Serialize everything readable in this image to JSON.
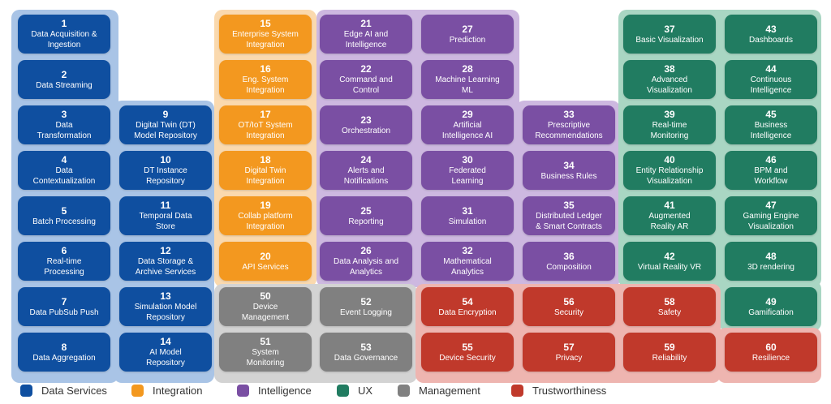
{
  "colors": {
    "data_services": "#0f4fa0",
    "integration": "#f3981f",
    "intelligence": "#7a4fa3",
    "ux": "#217c61",
    "management": "#808080",
    "trustworthiness": "#c0392b"
  },
  "tiles": [
    {
      "num": "1",
      "label": "Data Acquisition &\nIngestion",
      "cat": "data_services"
    },
    {
      "num": "2",
      "label": "Data Streaming",
      "cat": "data_services"
    },
    {
      "num": "3",
      "label": "Data\nTransformation",
      "cat": "data_services"
    },
    {
      "num": "4",
      "label": "Data\nContextualization",
      "cat": "data_services"
    },
    {
      "num": "5",
      "label": "Batch Processing",
      "cat": "data_services"
    },
    {
      "num": "6",
      "label": "Real-time\nProcessing",
      "cat": "data_services"
    },
    {
      "num": "7",
      "label": "Data PubSub Push",
      "cat": "data_services"
    },
    {
      "num": "8",
      "label": "Data Aggregation",
      "cat": "data_services"
    },
    {
      "num": "9",
      "label": "Digital Twin (DT)\nModel Repository",
      "cat": "data_services"
    },
    {
      "num": "10",
      "label": "DT Instance\nRepository",
      "cat": "data_services"
    },
    {
      "num": "11",
      "label": "Temporal Data\nStore",
      "cat": "data_services"
    },
    {
      "num": "12",
      "label": "Data Storage &\nArchive Services",
      "cat": "data_services"
    },
    {
      "num": "13",
      "label": "Simulation Model\nRepository",
      "cat": "data_services"
    },
    {
      "num": "14",
      "label": "AI Model\nRepository",
      "cat": "data_services"
    },
    {
      "num": "15",
      "label": "Enterprise System\nIntegration",
      "cat": "integration"
    },
    {
      "num": "16",
      "label": "Eng. System\nIntegration",
      "cat": "integration"
    },
    {
      "num": "17",
      "label": "OT/IoT System\nIntegration",
      "cat": "integration"
    },
    {
      "num": "18",
      "label": "Digital Twin\nIntegration",
      "cat": "integration"
    },
    {
      "num": "19",
      "label": "Collab platform\nIntegration",
      "cat": "integration"
    },
    {
      "num": "20",
      "label": "API Services",
      "cat": "integration"
    },
    {
      "num": "21",
      "label": "Edge AI and\nIntelligence",
      "cat": "intelligence"
    },
    {
      "num": "22",
      "label": "Command and\nControl",
      "cat": "intelligence"
    },
    {
      "num": "23",
      "label": "Orchestration",
      "cat": "intelligence"
    },
    {
      "num": "24",
      "label": "Alerts and\nNotifications",
      "cat": "intelligence"
    },
    {
      "num": "25",
      "label": "Reporting",
      "cat": "intelligence"
    },
    {
      "num": "26",
      "label": "Data Analysis and\nAnalytics",
      "cat": "intelligence"
    },
    {
      "num": "27",
      "label": "Prediction",
      "cat": "intelligence"
    },
    {
      "num": "28",
      "label": "Machine Learning\nML",
      "cat": "intelligence"
    },
    {
      "num": "29",
      "label": "Artificial\nIntelligence AI",
      "cat": "intelligence"
    },
    {
      "num": "30",
      "label": "Federated\nLearning",
      "cat": "intelligence"
    },
    {
      "num": "31",
      "label": "Simulation",
      "cat": "intelligence"
    },
    {
      "num": "32",
      "label": "Mathematical\nAnalytics",
      "cat": "intelligence"
    },
    {
      "num": "33",
      "label": "Prescriptive\nRecommendations",
      "cat": "intelligence"
    },
    {
      "num": "34",
      "label": "Business Rules",
      "cat": "intelligence"
    },
    {
      "num": "35",
      "label": "Distributed Ledger\n& Smart Contracts",
      "cat": "intelligence"
    },
    {
      "num": "36",
      "label": "Composition",
      "cat": "intelligence"
    },
    {
      "num": "37",
      "label": "Basic Visualization",
      "cat": "ux"
    },
    {
      "num": "38",
      "label": "Advanced\nVisualization",
      "cat": "ux"
    },
    {
      "num": "39",
      "label": "Real-time\nMonitoring",
      "cat": "ux"
    },
    {
      "num": "40",
      "label": "Entity Relationship\nVisualization",
      "cat": "ux"
    },
    {
      "num": "41",
      "label": "Augmented\nReality AR",
      "cat": "ux"
    },
    {
      "num": "42",
      "label": "Virtual Reality VR",
      "cat": "ux"
    },
    {
      "num": "43",
      "label": "Dashboards",
      "cat": "ux"
    },
    {
      "num": "44",
      "label": "Continuous\nIntelligence",
      "cat": "ux"
    },
    {
      "num": "45",
      "label": "Business\nIntelligence",
      "cat": "ux"
    },
    {
      "num": "46",
      "label": "BPM and\nWorkflow",
      "cat": "ux"
    },
    {
      "num": "47",
      "label": "Gaming Engine\nVisualization",
      "cat": "ux"
    },
    {
      "num": "48",
      "label": "3D rendering",
      "cat": "ux"
    },
    {
      "num": "49",
      "label": "Gamification",
      "cat": "ux"
    },
    {
      "num": "50",
      "label": "Device\nManagement",
      "cat": "management"
    },
    {
      "num": "51",
      "label": "System\nMonitoring",
      "cat": "management"
    },
    {
      "num": "52",
      "label": "Event Logging",
      "cat": "management"
    },
    {
      "num": "53",
      "label": "Data Governance",
      "cat": "management"
    },
    {
      "num": "54",
      "label": "Data Encryption",
      "cat": "trustworthiness"
    },
    {
      "num": "55",
      "label": "Device Security",
      "cat": "trustworthiness"
    },
    {
      "num": "56",
      "label": "Security",
      "cat": "trustworthiness"
    },
    {
      "num": "57",
      "label": "Privacy",
      "cat": "trustworthiness"
    },
    {
      "num": "58",
      "label": "Safety",
      "cat": "trustworthiness"
    },
    {
      "num": "59",
      "label": "Reliability",
      "cat": "trustworthiness"
    },
    {
      "num": "60",
      "label": "Resilience",
      "cat": "trustworthiness"
    }
  ],
  "legend": [
    {
      "label": "Data Services",
      "cat": "data_services"
    },
    {
      "label": "Integration",
      "cat": "integration"
    },
    {
      "label": "Intelligence",
      "cat": "intelligence"
    },
    {
      "label": "UX",
      "cat": "ux"
    },
    {
      "label": "Management",
      "cat": "management"
    },
    {
      "label": "Trustworthiness",
      "cat": "trustworthiness"
    }
  ]
}
